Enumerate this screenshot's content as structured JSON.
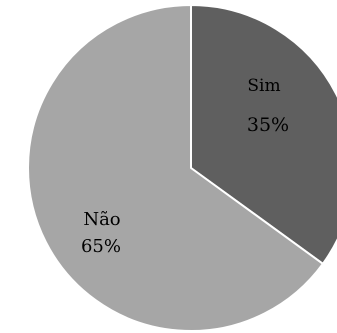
{
  "chart_data": {
    "type": "pie",
    "title": "",
    "slices": [
      {
        "label": "Sim",
        "value": 35,
        "value_label": "35%",
        "color": "#5f5f5f"
      },
      {
        "label": "Não",
        "value": 65,
        "value_label": "65%",
        "color": "#a6a6a6"
      }
    ],
    "start_angle_deg": 0,
    "direction": "clockwise",
    "slice_border_color": "#ffffff",
    "legend": "none"
  }
}
